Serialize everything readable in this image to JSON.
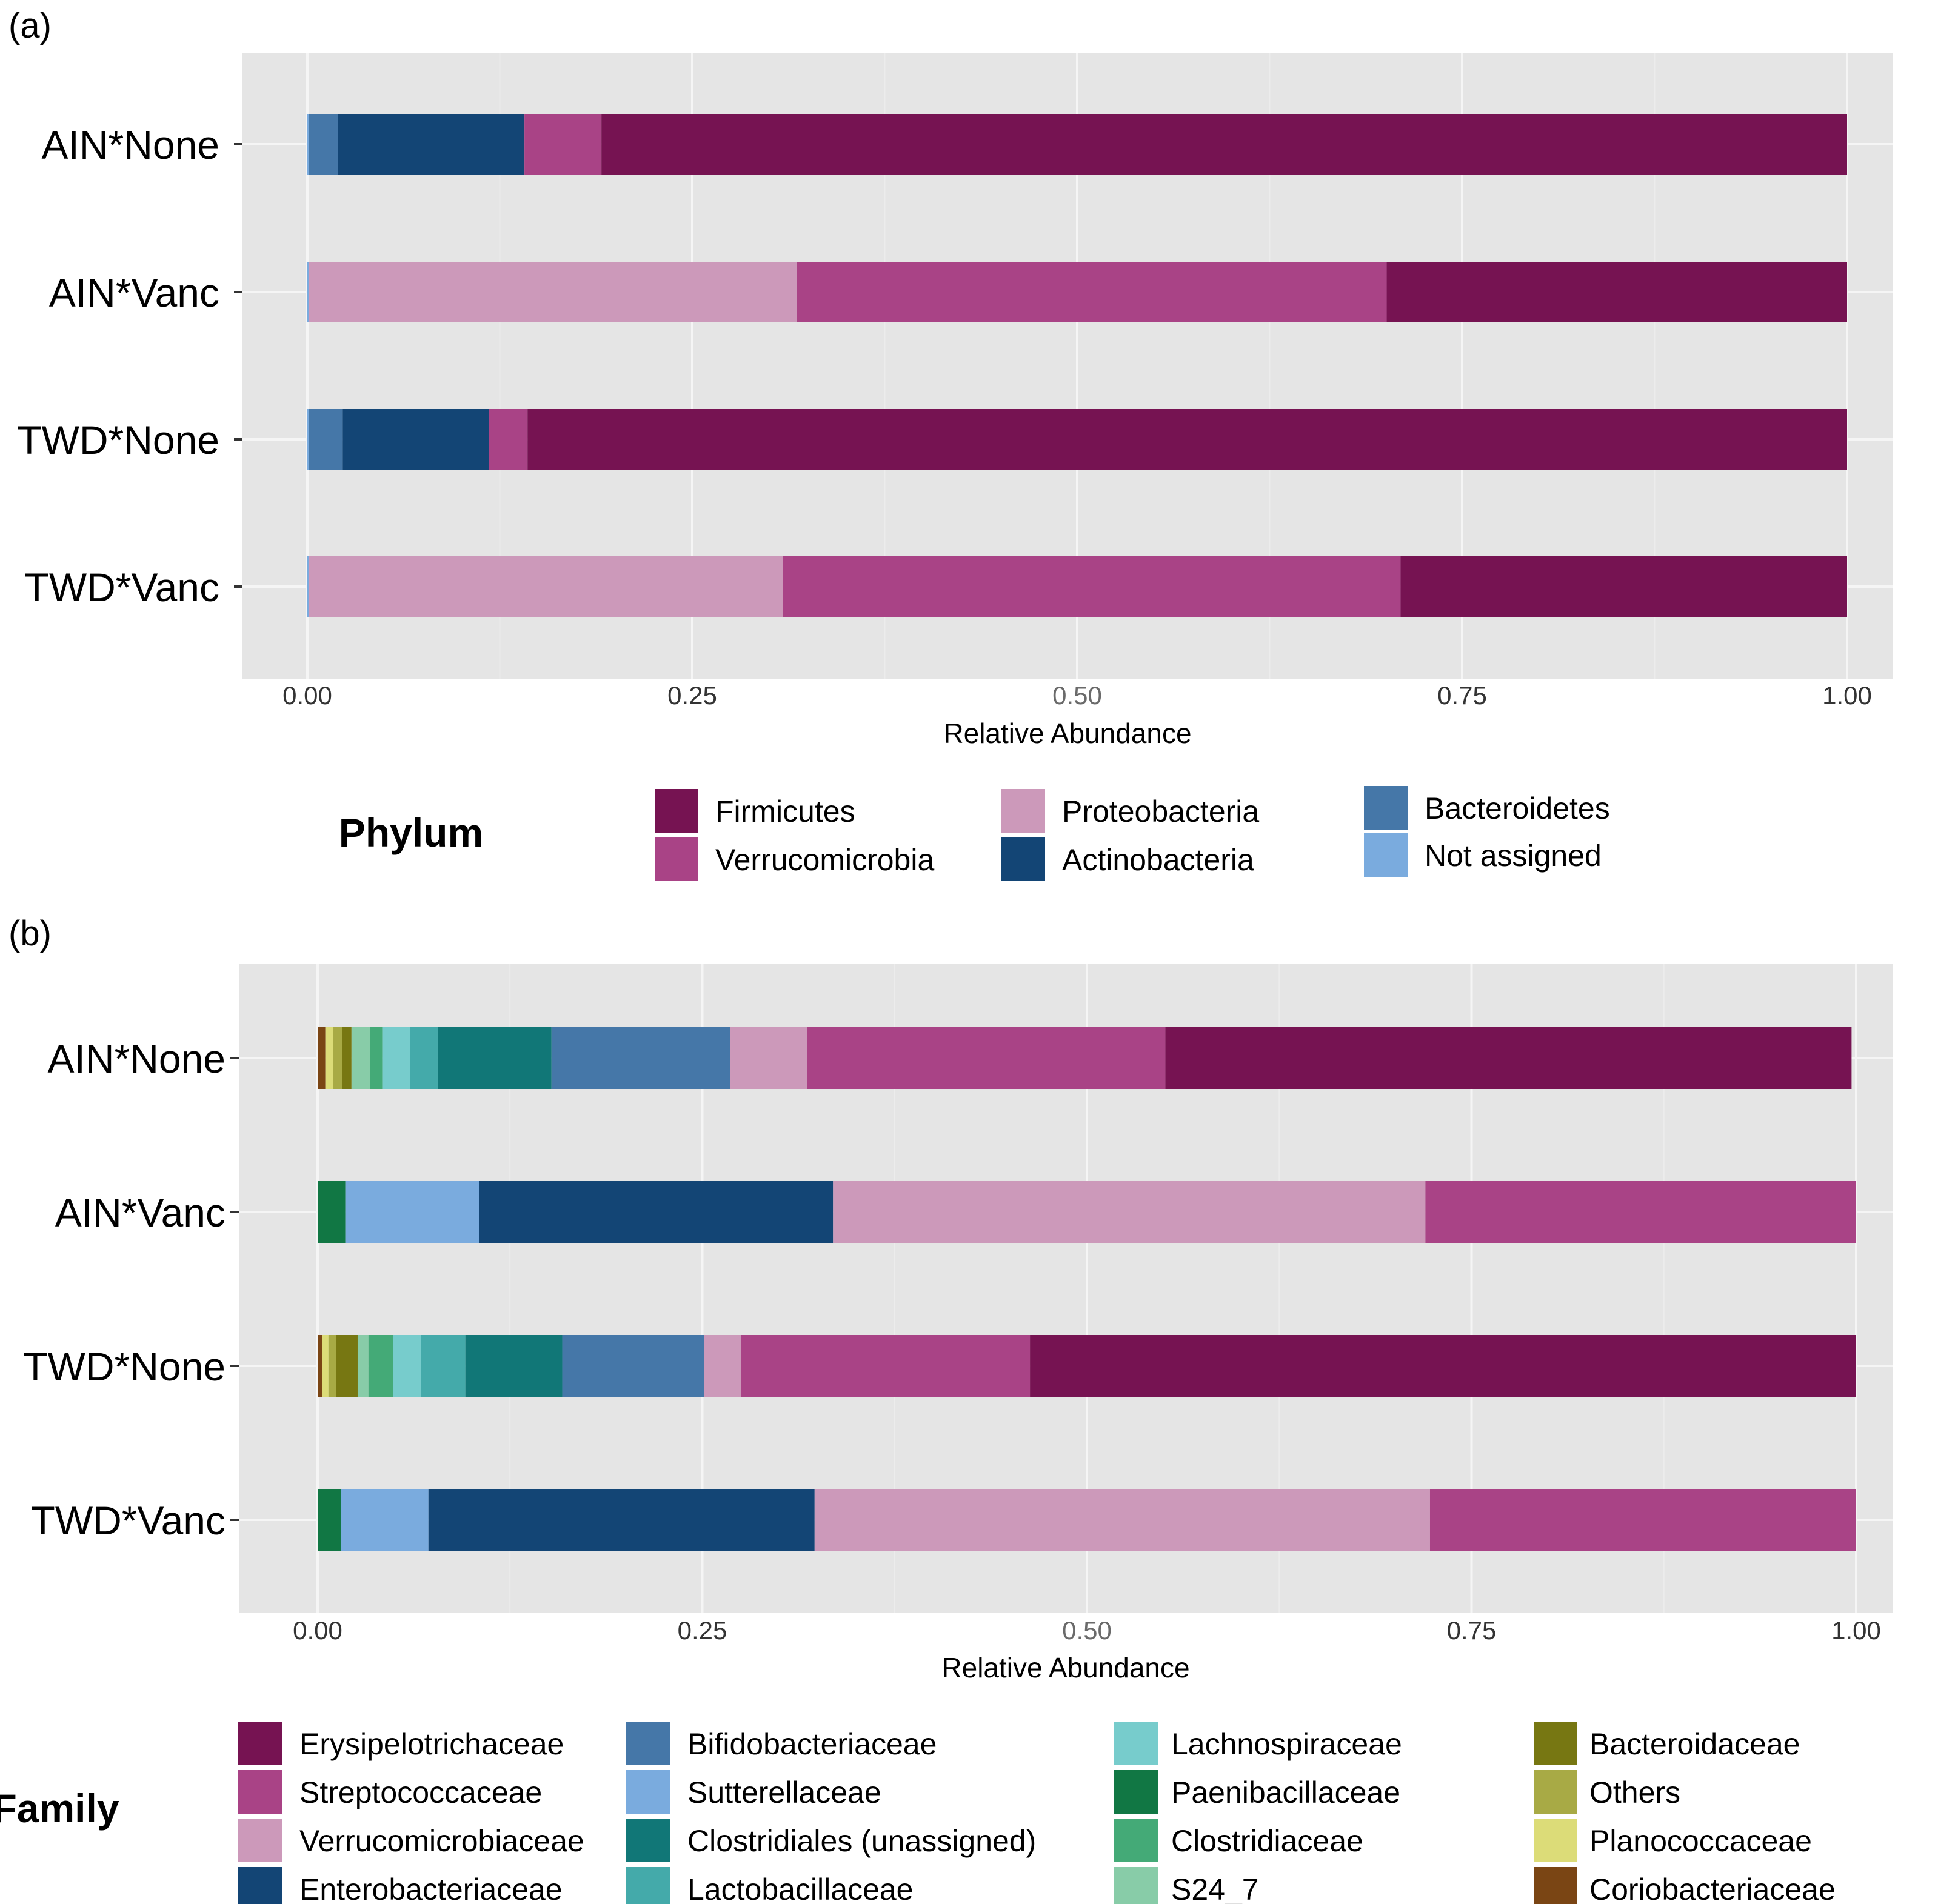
{
  "chart_data": [
    {
      "panel_label": "(a)",
      "type": "bar",
      "orientation": "horizontal",
      "stacked": true,
      "xlabel": "Relative Abundance",
      "xlim": [
        0,
        1
      ],
      "x_ticks": [
        "0.00",
        "0.25",
        "0.50",
        "0.75",
        "1.00"
      ],
      "categories": [
        "AIN*None",
        "AIN*Vanc",
        "TWD*None",
        "TWD*Vanc"
      ],
      "legend_title": "Phylum",
      "legend_position": "bottom",
      "legend_items": [
        "Firmicutes",
        "Verrucomicrobia",
        "Proteobacteria",
        "Actinobacteria",
        "Bacteroidetes",
        "Not assigned"
      ],
      "series": [
        {
          "name": "Not assigned",
          "color": "#7aabde",
          "values": [
            0.001,
            0.001,
            0.001,
            0.001
          ]
        },
        {
          "name": "Bacteroidetes",
          "color": "#4577a8",
          "values": [
            0.019,
            0.0,
            0.022,
            0.0
          ]
        },
        {
          "name": "Actinobacteria",
          "color": "#134575",
          "values": [
            0.121,
            0.0,
            0.095,
            0.0
          ]
        },
        {
          "name": "Proteobacteria",
          "color": "#cc99ba",
          "values": [
            0.0,
            0.317,
            0.0,
            0.308
          ]
        },
        {
          "name": "Verrucomicrobia",
          "color": "#a94386",
          "values": [
            0.05,
            0.383,
            0.025,
            0.401
          ]
        },
        {
          "name": "Firmicutes",
          "color": "#761352",
          "values": [
            0.809,
            0.299,
            0.857,
            0.29
          ]
        }
      ]
    },
    {
      "panel_label": "(b)",
      "type": "bar",
      "orientation": "horizontal",
      "stacked": true,
      "xlabel": "Relative Abundance",
      "xlim": [
        0,
        1
      ],
      "x_ticks": [
        "0.00",
        "0.25",
        "0.50",
        "0.75",
        "1.00"
      ],
      "categories": [
        "AIN*None",
        "AIN*Vanc",
        "TWD*None",
        "TWD*Vanc"
      ],
      "legend_title": "Family",
      "legend_position": "bottom",
      "legend_items": [
        "Erysipelotrichaceae",
        "Streptococcaceae",
        "Verrucomicrobiaceae",
        "Enterobacteriaceae",
        "Bifidobacteriaceae",
        "Sutterellaceae",
        "Clostridiales (unassigned)",
        "Lactobacillaceae",
        "Lachnospiraceae",
        "Paenibacillaceae",
        "Clostridiaceae",
        "S24_7",
        "Bacteroidaceae",
        "Others",
        "Planococcaceae",
        "Coriobacteriaceae"
      ],
      "series": [
        {
          "name": "Coriobacteriaceae",
          "color": "#7a4514",
          "values": [
            0.005,
            0.0,
            0.003,
            0.0
          ]
        },
        {
          "name": "Planococcaceae",
          "color": "#dcdc78",
          "values": [
            0.005,
            0.0,
            0.004,
            0.0
          ]
        },
        {
          "name": "Others",
          "color": "#a8aa45",
          "values": [
            0.006,
            0.0,
            0.005,
            0.0
          ]
        },
        {
          "name": "Bacteroidaceae",
          "color": "#777712",
          "values": [
            0.006,
            0.0,
            0.014,
            0.0
          ]
        },
        {
          "name": "S24_7",
          "color": "#88cca8",
          "values": [
            0.012,
            0.0,
            0.007,
            0.0
          ]
        },
        {
          "name": "Clostridiaceae",
          "color": "#44aa77",
          "values": [
            0.008,
            0.0,
            0.016,
            0.0
          ]
        },
        {
          "name": "Paenibacillaceae",
          "color": "#117744",
          "values": [
            0.0,
            0.018,
            0.0,
            0.015
          ]
        },
        {
          "name": "Lachnospiraceae",
          "color": "#77cccc",
          "values": [
            0.018,
            0.0,
            0.018,
            0.0
          ]
        },
        {
          "name": "Lactobacillaceae",
          "color": "#44aaaa",
          "values": [
            0.018,
            0.0,
            0.029,
            0.0
          ]
        },
        {
          "name": "Clostridiales (unassigned)",
          "color": "#117777",
          "values": [
            0.074,
            0.0,
            0.063,
            0.0
          ]
        },
        {
          "name": "Bifidobacteriaceae",
          "color": "#4577a8",
          "values": [
            0.116,
            0.0,
            0.092,
            0.0
          ]
        },
        {
          "name": "Sutterellaceae",
          "color": "#7aabde",
          "values": [
            0.0,
            0.087,
            0.0,
            0.057
          ]
        },
        {
          "name": "Enterobacteriaceae",
          "color": "#134575",
          "values": [
            0.0,
            0.23,
            0.0,
            0.251
          ]
        },
        {
          "name": "Verrucomicrobiaceae",
          "color": "#cc99ba",
          "values": [
            0.05,
            0.385,
            0.024,
            0.4
          ]
        },
        {
          "name": "Streptococcaceae",
          "color": "#a94386",
          "values": [
            0.233,
            0.28,
            0.188,
            0.277
          ]
        },
        {
          "name": "Erysipelotrichaceae",
          "color": "#761352",
          "values": [
            0.446,
            0.0,
            0.537,
            0.0
          ]
        }
      ]
    }
  ]
}
